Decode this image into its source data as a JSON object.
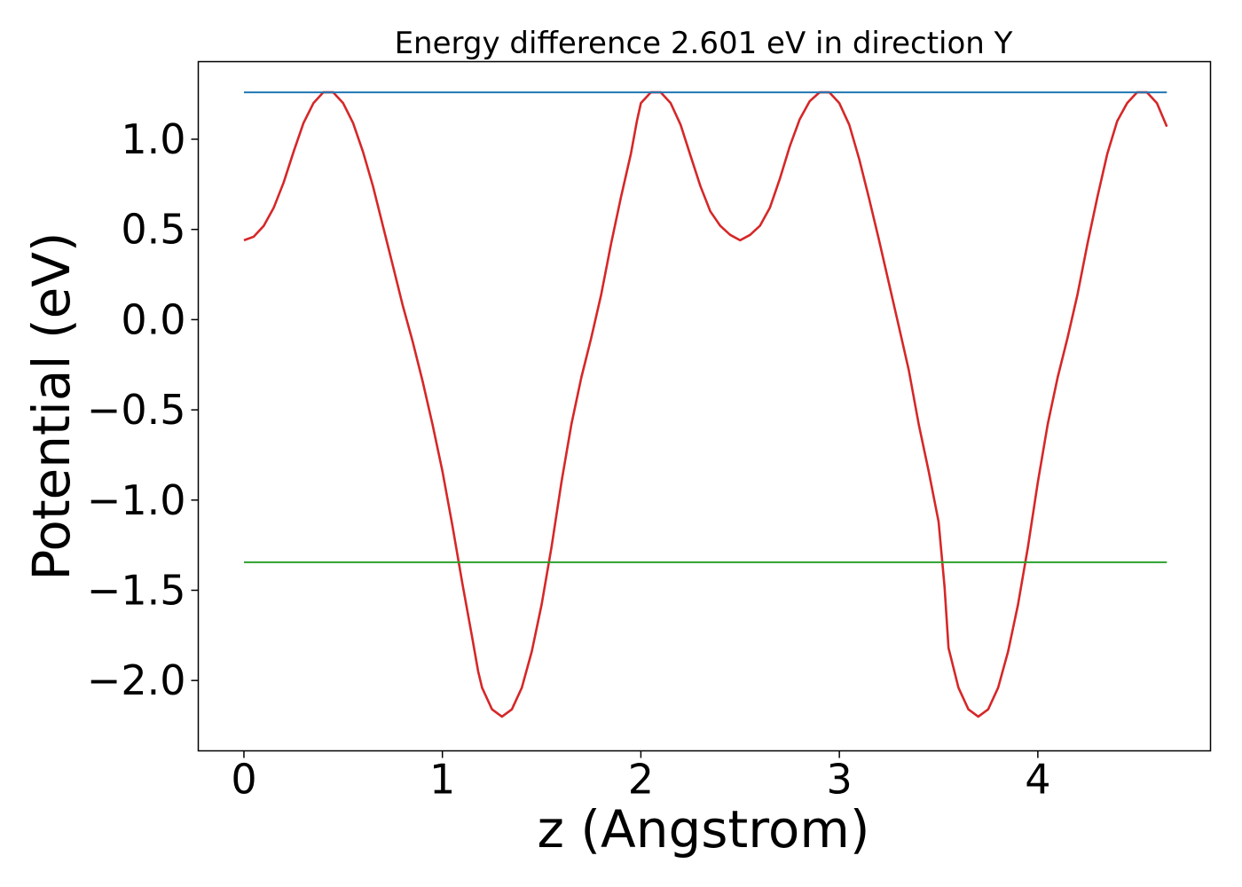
{
  "chart_data": {
    "type": "line",
    "title": "Energy difference 2.601 eV in direction Y",
    "xlabel": "z (Angstrom)",
    "ylabel": "Potential (eV)",
    "xlim": [
      -0.23,
      4.87
    ],
    "ylim": [
      -2.39,
      1.43
    ],
    "xticks": [
      0,
      1,
      2,
      3,
      4
    ],
    "xtick_labels": [
      "0",
      "1",
      "2",
      "3",
      "4"
    ],
    "yticks": [
      1.0,
      0.5,
      0.0,
      -0.5,
      -1.0,
      -1.5,
      -2.0
    ],
    "ytick_labels": [
      "1.0",
      "0.5",
      "0.0",
      "−0.5",
      "−1.0",
      "−1.5",
      "−2.0"
    ],
    "grid": false,
    "legend": "none",
    "series": [
      {
        "color": "#d62728",
        "style": "line",
        "x": [
          0.0,
          0.05,
          0.1,
          0.15,
          0.2,
          0.25,
          0.3,
          0.35,
          0.4,
          0.45,
          0.5,
          0.55,
          0.6,
          0.65,
          0.7,
          0.75,
          0.8,
          0.85,
          0.9,
          0.95,
          1.0,
          1.05,
          1.1,
          1.15,
          1.18,
          1.2,
          1.25,
          1.3,
          1.35,
          1.4,
          1.45,
          1.5,
          1.55,
          1.6,
          1.65,
          1.7,
          1.75,
          1.8,
          1.85,
          1.9,
          1.95,
          1.98,
          2.0,
          2.05,
          2.1,
          2.15,
          2.2,
          2.25,
          2.3,
          2.35,
          2.4,
          2.45,
          2.5,
          2.55,
          2.6,
          2.65,
          2.7,
          2.75,
          2.8,
          2.85,
          2.9,
          2.95,
          3.0,
          3.05,
          3.1,
          3.15,
          3.2,
          3.25,
          3.3,
          3.35,
          3.4,
          3.45,
          3.5,
          3.53,
          3.55,
          3.6,
          3.65,
          3.7,
          3.75,
          3.8,
          3.85,
          3.9,
          3.95,
          4.0,
          4.05,
          4.1,
          4.15,
          4.2,
          4.25,
          4.3,
          4.35,
          4.4,
          4.45,
          4.5,
          4.55,
          4.6,
          4.65
        ],
        "y": [
          0.44,
          0.46,
          0.52,
          0.62,
          0.76,
          0.93,
          1.09,
          1.2,
          1.26,
          1.26,
          1.2,
          1.09,
          0.93,
          0.74,
          0.52,
          0.3,
          0.08,
          -0.12,
          -0.34,
          -0.58,
          -0.84,
          -1.14,
          -1.46,
          -1.76,
          -1.95,
          -2.04,
          -2.16,
          -2.2,
          -2.16,
          -2.04,
          -1.84,
          -1.58,
          -1.26,
          -0.9,
          -0.58,
          -0.32,
          -0.1,
          0.14,
          0.42,
          0.68,
          0.92,
          1.1,
          1.2,
          1.26,
          1.26,
          1.2,
          1.08,
          0.91,
          0.74,
          0.6,
          0.52,
          0.47,
          0.44,
          0.47,
          0.52,
          0.62,
          0.78,
          0.96,
          1.11,
          1.21,
          1.26,
          1.26,
          1.2,
          1.08,
          0.89,
          0.67,
          0.44,
          0.2,
          -0.04,
          -0.28,
          -0.58,
          -0.84,
          -1.12,
          -1.48,
          -1.82,
          -2.04,
          -2.16,
          -2.2,
          -2.16,
          -2.04,
          -1.84,
          -1.58,
          -1.26,
          -0.9,
          -0.58,
          -0.32,
          -0.1,
          0.14,
          0.42,
          0.68,
          0.92,
          1.1,
          1.2,
          1.26,
          1.26,
          1.2,
          1.07
        ]
      },
      {
        "color": "#1f77b4",
        "style": "line",
        "x": [
          0.0,
          4.65
        ],
        "y": [
          1.26,
          1.26
        ]
      },
      {
        "color": "#2ca02c",
        "style": "line",
        "x": [
          0.0,
          4.65
        ],
        "y": [
          -1.345,
          -1.345
        ]
      }
    ]
  }
}
